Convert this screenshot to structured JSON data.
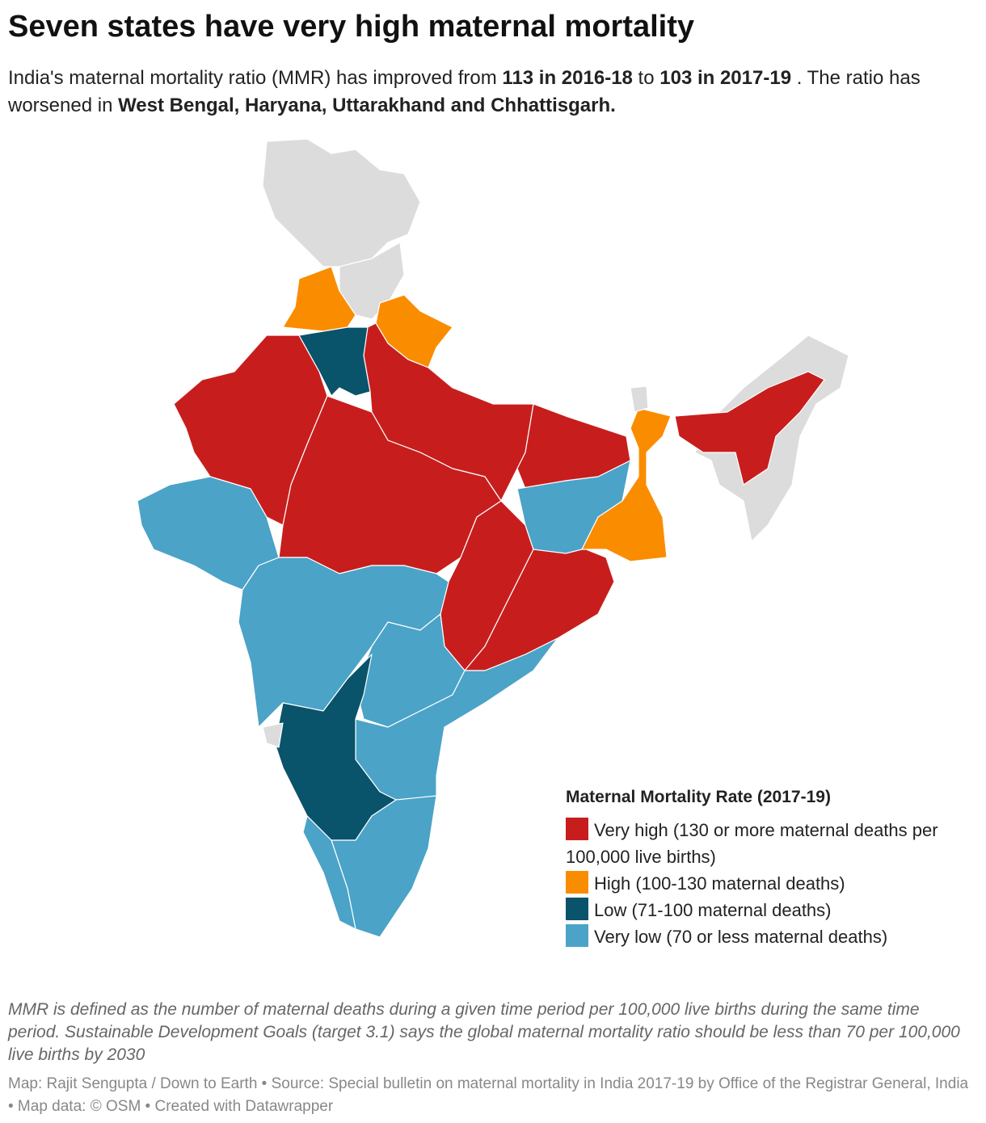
{
  "title": "Seven states have very high maternal mortality",
  "subtitle": [
    {
      "text": "India's maternal mortality ratio (MMR) has improved from ",
      "bold": false
    },
    {
      "text": "113 in 2016-18",
      "bold": true
    },
    {
      "text": " to ",
      "bold": false
    },
    {
      "text": "103 in 2017-19",
      "bold": true
    },
    {
      "text": " . The ratio has worsened in ",
      "bold": false
    },
    {
      "text": "West Bengal, Haryana, Uttarakhand and Chhattisgarh.",
      "bold": true
    }
  ],
  "legend": {
    "title": "Maternal Mortality Rate (2017-19)",
    "items": [
      {
        "label": "Very high (130 or more maternal deaths per 100,000 live births)",
        "color": "#c71e1d"
      },
      {
        "label": "High (100-130 maternal deaths)",
        "color": "#fa8c00"
      },
      {
        "label": "Low (71-100 maternal deaths)",
        "color": "#09536b"
      },
      {
        "label": "Very low (70 or less maternal deaths)",
        "color": "#4ba3c7"
      }
    ],
    "no_data_color": "#dcdcdc"
  },
  "note": "MMR is defined as the number of maternal deaths during a given time period per 100,000 live births during the same time period. Sustainable Development Goals (target 3.1) says the global maternal mortality ratio should be less than 70 per 100,000 live births by 2030",
  "source": "Map: Rajit Sengupta / Down to Earth • Source: Special bulletin on maternal mortality in India 2017-19 by Office of the Registrar General, India • Map data: © OSM • Created with Datawrapper"
}
